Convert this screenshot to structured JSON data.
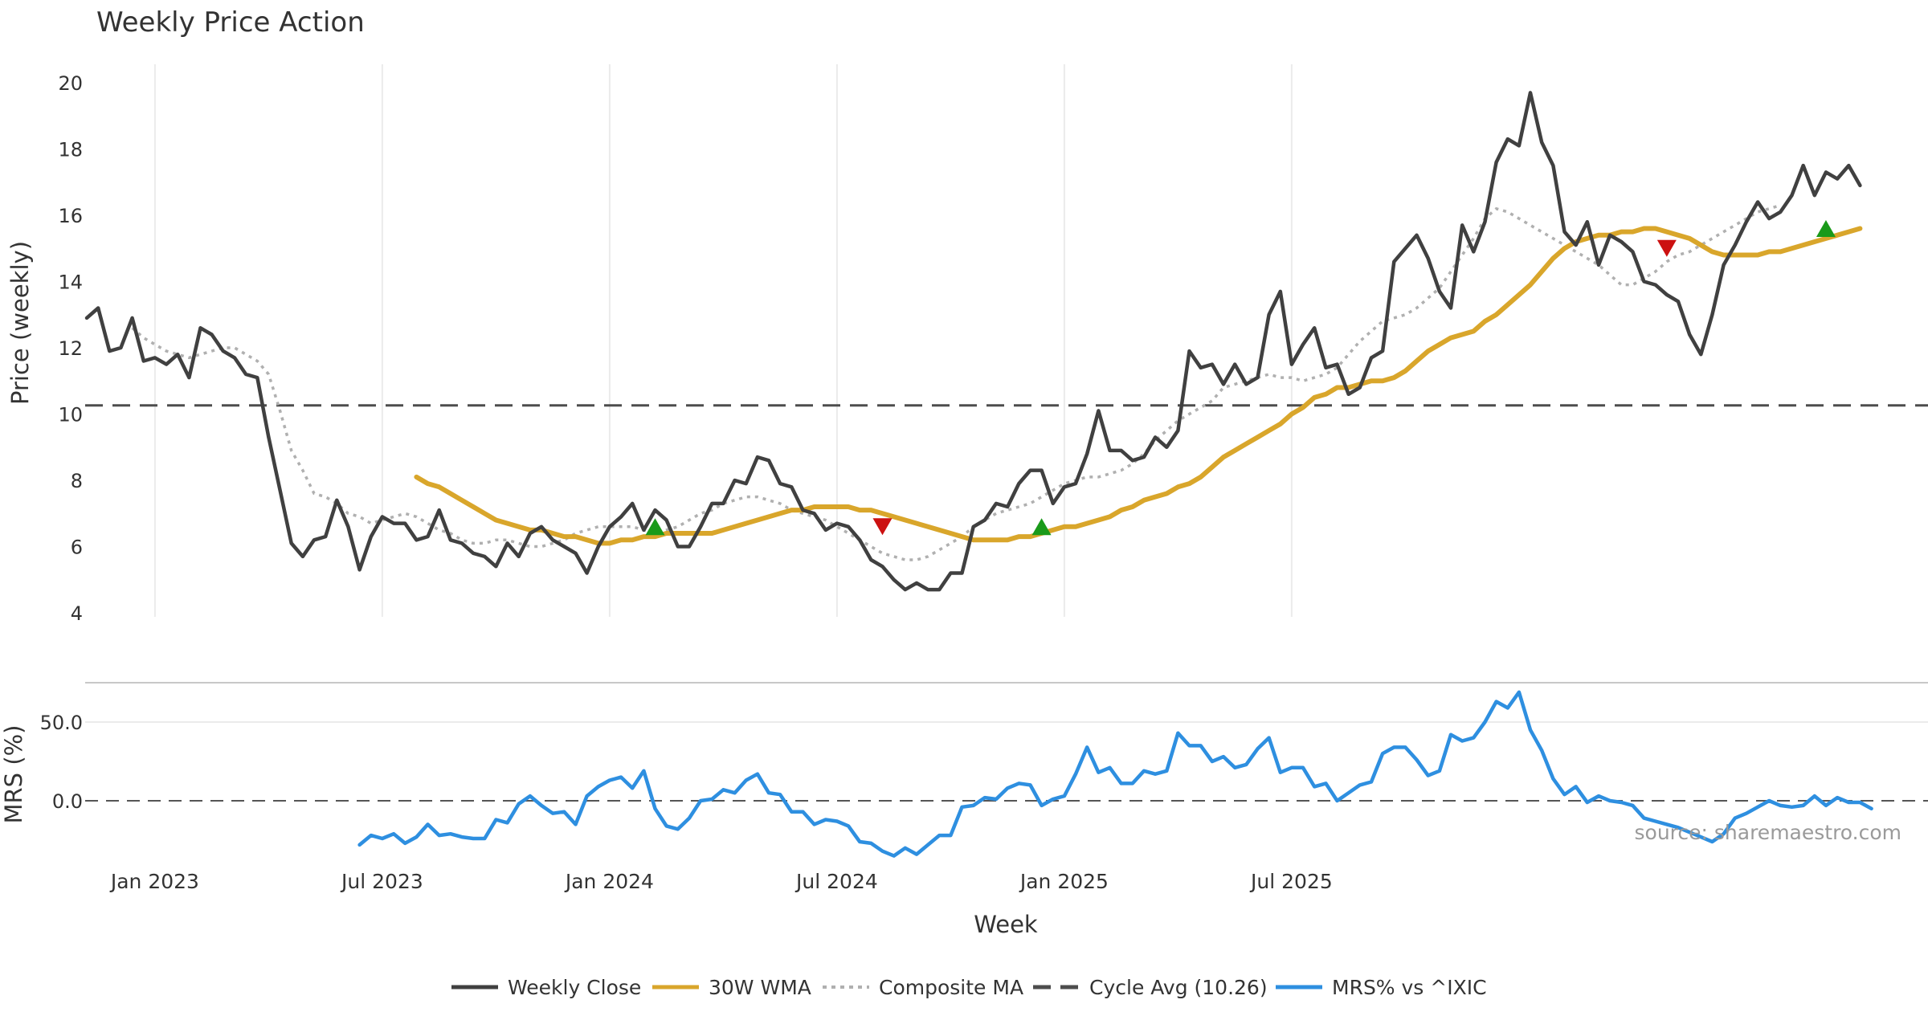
{
  "chart_data": {
    "type": "line",
    "title": "Weekly Price Action",
    "xlabel": "Week",
    "source": "source: sharemaestro.com",
    "x_ticks": [
      "Jan 2023",
      "Jul 2023",
      "Jan 2024",
      "Jul 2024",
      "Jan 2025",
      "Jul 2025"
    ],
    "price_panel": {
      "ylabel": "Price (weekly)",
      "ylim": [
        4,
        20
      ],
      "yticks": [
        "4",
        "6",
        "8",
        "10",
        "12",
        "14",
        "16",
        "18",
        "20"
      ],
      "series": [
        {
          "name": "Weekly Close",
          "color": "#404040",
          "style": "solid",
          "start_week": 0,
          "values": [
            12.9,
            13.2,
            11.9,
            12.0,
            12.9,
            11.6,
            11.7,
            11.5,
            11.8,
            11.1,
            12.6,
            12.4,
            11.9,
            11.7,
            11.2,
            11.1,
            9.3,
            7.7,
            6.1,
            5.7,
            6.2,
            6.3,
            7.4,
            6.6,
            5.3,
            6.3,
            6.9,
            6.7,
            6.7,
            6.2,
            6.3,
            7.1,
            6.2,
            6.1,
            5.8,
            5.7,
            5.4,
            6.1,
            5.7,
            6.4,
            6.6,
            6.2,
            6.0,
            5.8,
            5.2,
            6.0,
            6.6,
            6.9,
            7.3,
            6.5,
            7.1,
            6.8,
            6.0,
            6.0,
            6.6,
            7.3,
            7.3,
            8.0,
            7.9,
            8.7,
            8.6,
            7.9,
            7.8,
            7.1,
            7.0,
            6.5,
            6.7,
            6.6,
            6.2,
            5.6,
            5.4,
            5.0,
            4.7,
            4.9,
            4.7,
            4.7,
            5.2,
            5.2,
            6.6,
            6.8,
            7.3,
            7.2,
            7.9,
            8.3,
            8.3,
            7.3,
            7.8,
            7.9,
            8.8,
            10.1,
            8.9,
            8.9,
            8.6,
            8.7,
            9.3,
            9.0,
            9.5,
            11.9,
            11.4,
            11.5,
            10.9,
            11.5,
            10.9,
            11.1,
            13.0,
            13.7,
            11.5,
            12.1,
            12.6,
            11.4,
            11.5,
            10.6,
            10.8,
            11.7,
            11.9,
            14.6,
            15.0,
            15.4,
            14.7,
            13.7,
            13.2,
            15.7,
            14.9,
            15.8,
            17.6,
            18.3,
            18.1,
            19.7,
            18.2,
            17.5,
            15.5,
            15.1,
            15.8,
            14.5,
            15.4,
            15.2,
            14.9,
            14.0,
            13.9,
            13.6,
            13.4,
            12.4,
            11.8,
            13.0,
            14.5,
            15.1,
            15.8,
            16.4,
            15.9,
            16.1,
            16.6,
            17.5,
            16.6,
            17.3,
            17.1,
            17.5,
            16.9
          ]
        },
        {
          "name": "30W WMA",
          "color": "#d9a62b",
          "style": "solid",
          "start_week": 29,
          "values": [
            8.1,
            7.9,
            7.8,
            7.6,
            7.4,
            7.2,
            7.0,
            6.8,
            6.7,
            6.6,
            6.5,
            6.5,
            6.4,
            6.3,
            6.3,
            6.2,
            6.1,
            6.1,
            6.2,
            6.2,
            6.3,
            6.3,
            6.4,
            6.4,
            6.4,
            6.4,
            6.4,
            6.5,
            6.6,
            6.7,
            6.8,
            6.9,
            7.0,
            7.1,
            7.1,
            7.2,
            7.2,
            7.2,
            7.2,
            7.1,
            7.1,
            7.0,
            6.9,
            6.8,
            6.7,
            6.6,
            6.5,
            6.4,
            6.3,
            6.2,
            6.2,
            6.2,
            6.2,
            6.3,
            6.3,
            6.4,
            6.5,
            6.6,
            6.6,
            6.7,
            6.8,
            6.9,
            7.1,
            7.2,
            7.4,
            7.5,
            7.6,
            7.8,
            7.9,
            8.1,
            8.4,
            8.7,
            8.9,
            9.1,
            9.3,
            9.5,
            9.7,
            10.0,
            10.2,
            10.5,
            10.6,
            10.8,
            10.8,
            10.9,
            11.0,
            11.0,
            11.1,
            11.3,
            11.6,
            11.9,
            12.1,
            12.3,
            12.4,
            12.5,
            12.8,
            13.0,
            13.3,
            13.6,
            13.9,
            14.3,
            14.7,
            15.0,
            15.2,
            15.3,
            15.4,
            15.4,
            15.5,
            15.5,
            15.6,
            15.6,
            15.5,
            15.4,
            15.3,
            15.1,
            14.9,
            14.8,
            14.8,
            14.8,
            14.8,
            14.9,
            14.9,
            15.0,
            15.1,
            15.2,
            15.3,
            15.4,
            15.5,
            15.6
          ]
        },
        {
          "name": "Composite MA",
          "color": "#b0b0b0",
          "style": "dotted",
          "start_week": 4,
          "values": [
            12.6,
            12.3,
            12.1,
            11.9,
            11.8,
            11.7,
            11.8,
            11.9,
            12.0,
            12.0,
            11.8,
            11.6,
            11.2,
            10.1,
            8.9,
            8.3,
            7.6,
            7.5,
            7.3,
            7.0,
            6.9,
            6.7,
            6.8,
            6.9,
            7.0,
            6.9,
            6.7,
            6.5,
            6.4,
            6.2,
            6.1,
            6.1,
            6.2,
            6.2,
            6.1,
            6.0,
            6.0,
            6.1,
            6.2,
            6.4,
            6.5,
            6.6,
            6.6,
            6.6,
            6.6,
            6.5,
            6.4,
            6.5,
            6.6,
            6.8,
            7.0,
            7.1,
            7.3,
            7.4,
            7.5,
            7.5,
            7.4,
            7.3,
            7.1,
            7.0,
            6.9,
            6.8,
            6.6,
            6.4,
            6.2,
            6.0,
            5.8,
            5.7,
            5.6,
            5.6,
            5.7,
            5.9,
            6.1,
            6.3,
            6.6,
            6.8,
            7.0,
            7.1,
            7.2,
            7.3,
            7.5,
            7.7,
            7.9,
            8.0,
            8.1,
            8.1,
            8.2,
            8.3,
            8.5,
            8.8,
            9.2,
            9.5,
            9.8,
            10.0,
            10.2,
            10.4,
            10.8,
            10.9,
            11.0,
            11.1,
            11.2,
            11.1,
            11.1,
            11.0,
            11.1,
            11.2,
            11.4,
            11.8,
            12.2,
            12.5,
            12.8,
            12.9,
            13.0,
            13.2,
            13.5,
            13.8,
            14.3,
            14.8,
            15.3,
            15.9,
            16.2,
            16.1,
            15.9,
            15.7,
            15.5,
            15.3,
            15.1,
            14.9,
            14.7,
            14.5,
            14.2,
            13.9,
            13.9,
            14.1,
            14.3,
            14.6,
            14.8,
            14.9,
            15.1,
            15.3,
            15.5,
            15.7,
            15.9,
            16.1,
            16.2,
            16.3
          ]
        },
        {
          "name": "Cycle Avg (10.26)",
          "color": "#4d4d4d",
          "style": "dashed",
          "level": 10.26
        }
      ],
      "signals": [
        {
          "type": "buy",
          "week": 50,
          "value": 6.6,
          "color": "#1a9a1a"
        },
        {
          "type": "sell",
          "week": 70,
          "value": 6.6,
          "color": "#cc1111"
        },
        {
          "type": "buy",
          "week": 84,
          "value": 6.6,
          "color": "#1a9a1a"
        },
        {
          "type": "sell",
          "week": 139,
          "value": 15.0,
          "color": "#cc1111"
        },
        {
          "type": "buy",
          "week": 153,
          "value": 15.6,
          "color": "#1a9a1a"
        }
      ]
    },
    "mrs_panel": {
      "ylabel": "MRS (%)",
      "ylim": [
        -35,
        70
      ],
      "yticks": [
        "0.0",
        "50.0"
      ],
      "reference_level": 0,
      "series": [
        {
          "name": "MRS% vs ^IXIC",
          "color": "#2e8fe0",
          "style": "solid",
          "start_week": 24,
          "values": [
            -28,
            -22,
            -24,
            -21,
            -27,
            -23,
            -15,
            -22,
            -21,
            -23,
            -24,
            -24,
            -12,
            -14,
            -2,
            3,
            -3,
            -8,
            -7,
            -15,
            3,
            9,
            13,
            15,
            8,
            19,
            -5,
            -16,
            -18,
            -11,
            0,
            1,
            7,
            5,
            13,
            17,
            5,
            4,
            -7,
            -7,
            -15,
            -12,
            -13,
            -16,
            -26,
            -27,
            -32,
            -35,
            -30,
            -34,
            -28,
            -22,
            -22,
            -4,
            -3,
            2,
            1,
            8,
            11,
            10,
            -3,
            1,
            3,
            17,
            34,
            18,
            21,
            11,
            11,
            19,
            17,
            19,
            43,
            35,
            35,
            25,
            28,
            21,
            23,
            33,
            40,
            18,
            21,
            21,
            9,
            11,
            0,
            5,
            10,
            12,
            30,
            34,
            34,
            26,
            16,
            19,
            42,
            38,
            40,
            50,
            63,
            59,
            69,
            45,
            32,
            14,
            4,
            9,
            -1,
            3,
            0,
            -1,
            -3,
            -11,
            -13,
            -15,
            -17,
            -20,
            -23,
            -26,
            -21,
            -11,
            -8,
            -4,
            0,
            -3,
            -4,
            -3,
            3,
            -3,
            2,
            -1,
            -1,
            -5
          ]
        }
      ]
    },
    "legend": [
      {
        "label": "Weekly Close",
        "color": "#404040",
        "style": "solid"
      },
      {
        "label": "30W WMA",
        "color": "#d9a62b",
        "style": "solid"
      },
      {
        "label": "Composite MA",
        "color": "#b0b0b0",
        "style": "dotted"
      },
      {
        "label": "Cycle Avg (10.26)",
        "color": "#4d4d4d",
        "style": "dashed"
      },
      {
        "label": "MRS% vs ^IXIC",
        "color": "#2e8fe0",
        "style": "solid"
      }
    ],
    "legend_position": "bottom-center",
    "grid": true
  }
}
